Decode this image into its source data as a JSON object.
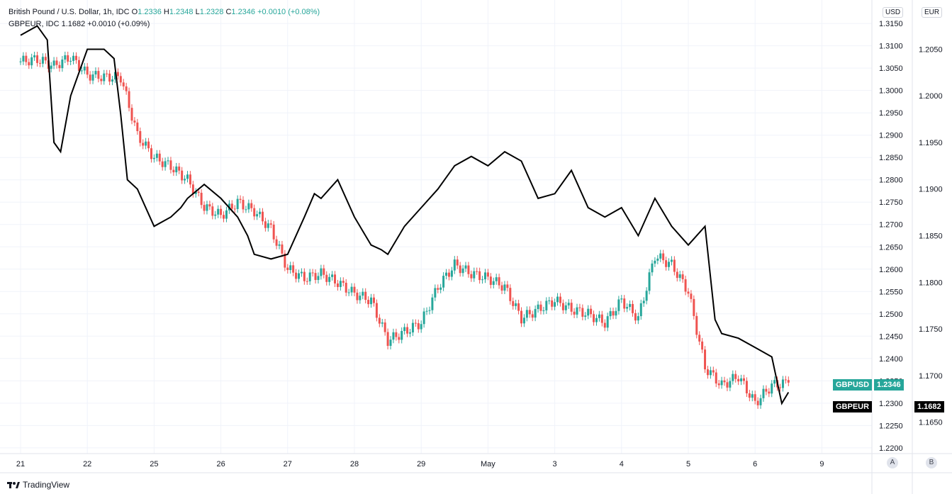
{
  "legend": {
    "main_title": "British Pound / U.S. Dollar, 1h, IDC",
    "o_label": "O",
    "o_value": "1.2336",
    "h_label": "H",
    "h_value": "1.2348",
    "l_label": "L",
    "l_value": "1.2328",
    "c_label": "C",
    "c_value": "1.2346",
    "change": "+0.0010 (+0.08%)",
    "compare_title": "GBPEUR, IDC",
    "compare_value": "1.1682",
    "compare_change": "+0.0010 (+0.09%)"
  },
  "axis_buttons": {
    "usd": "USD",
    "eur": "EUR",
    "a": "A",
    "b": "B"
  },
  "tags": {
    "gbpusd_name": "GBPUSD",
    "gbpusd_price": "1.2346",
    "gbpeur_name": "GBPEUR",
    "gbpeur_price": "1.1682"
  },
  "branding": {
    "label": "TradingView"
  },
  "colors": {
    "up": "#26a69a",
    "down": "#ef5350",
    "compare": "#000000",
    "grid": "#f0f3fa"
  },
  "chart_data": {
    "type": "line",
    "x_labels": [
      "21",
      "22",
      "25",
      "26",
      "27",
      "28",
      "29",
      "May",
      "3",
      "4",
      "5",
      "6",
      "9"
    ],
    "left_axis_ticks": [
      "1.3150",
      "1.3100",
      "1.3050",
      "1.3000",
      "1.2950",
      "1.2900",
      "1.2850",
      "1.2800",
      "1.2750",
      "1.2700",
      "1.2650",
      "1.2600",
      "1.2550",
      "1.2500",
      "1.2450",
      "1.2400",
      "1.2350",
      "1.2300",
      "1.2250",
      "1.2200"
    ],
    "right_axis_ticks": [
      "1.2050",
      "1.2000",
      "1.1950",
      "1.1900",
      "1.1850",
      "1.1800",
      "1.1750",
      "1.1700",
      "1.1650"
    ],
    "ylim_usd": [
      1.2195,
      1.3155
    ],
    "ylim_eur": [
      1.162,
      1.208
    ],
    "series": [
      {
        "name": "GBPUSD",
        "style": "candles",
        "x": [
          0,
          0.25,
          0.5,
          0.75,
          1,
          1.25,
          1.5,
          1.75,
          2,
          2.25,
          2.5,
          2.75,
          3,
          3.25,
          3.5,
          3.75,
          4,
          4.25,
          4.5,
          4.75,
          5,
          5.25,
          5.5,
          5.75,
          6,
          6.25,
          6.5,
          6.75,
          7,
          7.25,
          7.5,
          7.75,
          8,
          8.25,
          8.5,
          8.75,
          9,
          9.25,
          9.5,
          9.75,
          10,
          10.25,
          10.5,
          10.75,
          11,
          11.25,
          11.5
        ],
        "values": [
          1.3065,
          1.307,
          1.3055,
          1.3075,
          1.3035,
          1.303,
          1.303,
          1.29,
          1.285,
          1.283,
          1.28,
          1.274,
          1.272,
          1.275,
          1.273,
          1.269,
          1.26,
          1.258,
          1.259,
          1.257,
          1.2545,
          1.253,
          1.244,
          1.246,
          1.248,
          1.256,
          1.261,
          1.259,
          1.258,
          1.256,
          1.249,
          1.251,
          1.253,
          1.251,
          1.25,
          1.248,
          1.253,
          1.249,
          1.263,
          1.261,
          1.255,
          1.238,
          1.234,
          1.236,
          1.23,
          1.234,
          1.2346
        ]
      },
      {
        "name": "GBPEUR",
        "style": "line",
        "x": [
          0,
          0.25,
          0.4,
          0.5,
          0.6,
          0.75,
          1,
          1.25,
          1.4,
          1.5,
          1.6,
          1.75,
          2,
          2.25,
          2.4,
          2.5,
          2.75,
          3,
          3.25,
          3.4,
          3.5,
          3.75,
          4,
          4.25,
          4.4,
          4.5,
          4.75,
          5,
          5.25,
          5.4,
          5.5,
          5.75,
          6,
          6.25,
          6.5,
          6.75,
          7,
          7.25,
          7.5,
          7.75,
          8,
          8.25,
          8.5,
          8.75,
          9,
          9.25,
          9.5,
          9.75,
          10,
          10.25,
          10.4,
          10.5,
          10.75,
          11,
          11.25,
          11.4,
          11.5
        ],
        "values": [
          1.2065,
          1.2075,
          1.206,
          1.195,
          1.194,
          1.2,
          1.205,
          1.205,
          1.204,
          1.198,
          1.191,
          1.19,
          1.186,
          1.187,
          1.188,
          1.189,
          1.1905,
          1.189,
          1.187,
          1.185,
          1.183,
          1.1825,
          1.183,
          1.187,
          1.1895,
          1.189,
          1.191,
          1.187,
          1.184,
          1.1835,
          1.183,
          1.186,
          1.188,
          1.19,
          1.1925,
          1.1935,
          1.1925,
          1.194,
          1.193,
          1.189,
          1.1895,
          1.192,
          1.188,
          1.187,
          1.188,
          1.185,
          1.189,
          1.186,
          1.184,
          1.186,
          1.176,
          1.1745,
          1.174,
          1.173,
          1.172,
          1.167,
          1.1682
        ]
      }
    ],
    "grid": true
  }
}
